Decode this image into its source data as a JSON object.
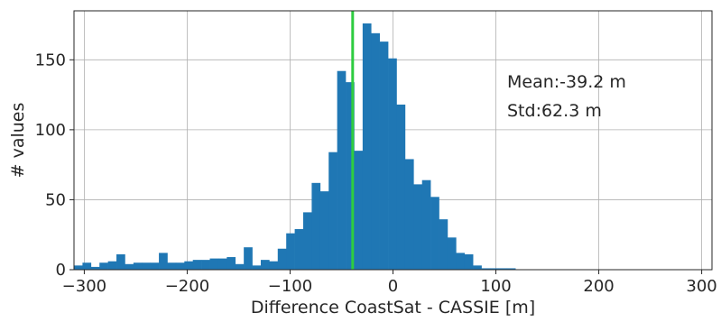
{
  "chart_data": {
    "type": "bar",
    "subtype": "histogram",
    "xlabel": "Difference CoastSat - CASSIE [m]",
    "ylabel": "# values",
    "xlim": [
      -310,
      310
    ],
    "ylim": [
      0,
      185
    ],
    "xticks": [
      -300,
      -200,
      -100,
      0,
      100,
      200,
      300
    ],
    "xtick_labels": [
      "−300",
      "−200",
      "−100",
      "0",
      "100",
      "200",
      "300"
    ],
    "yticks": [
      0,
      50,
      100,
      150
    ],
    "ytick_labels": [
      "0",
      "50",
      "100",
      "150"
    ],
    "grid": true,
    "bin_width": 8.25,
    "bin_start": -310,
    "values": [
      3,
      5,
      2,
      5,
      6,
      11,
      4,
      5,
      5,
      5,
      12,
      5,
      5,
      6,
      7,
      7,
      8,
      8,
      9,
      4,
      16,
      3,
      7,
      6,
      15,
      26,
      29,
      41,
      62,
      56,
      84,
      142,
      134,
      85,
      176,
      169,
      163,
      151,
      118,
      79,
      61,
      64,
      52,
      36,
      23,
      12,
      11,
      3,
      1,
      1,
      1,
      1
    ],
    "bar_color": "#1f77b4",
    "mean_line": {
      "x": -39.2,
      "color": "#2ecc40"
    },
    "annotations": [
      "Mean:-39.2 m",
      "Std:62.3 m"
    ]
  }
}
